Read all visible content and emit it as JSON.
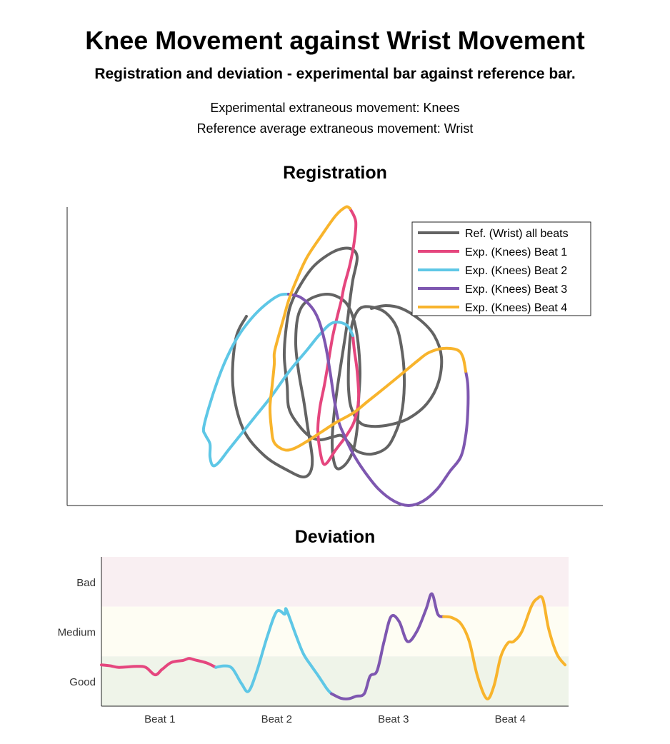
{
  "page": {
    "title": "Knee Movement against Wrist Movement",
    "subtitle": "Registration and deviation - experimental bar against reference bar.",
    "info_lines": [
      "Experimental extraneous movement: Knees",
      "Reference average extraneous movement: Wrist"
    ]
  },
  "chart_data": [
    {
      "type": "line",
      "title": "Registration",
      "xlabel": "",
      "ylabel": "",
      "axes_ticks": "none",
      "legend_position": "top-right",
      "colors": {
        "reference": "#636363",
        "beat1": "#e5467e",
        "beat2": "#5ec7e6",
        "beat3": "#7e57b0",
        "beat4": "#f8b42c"
      },
      "series": [
        {
          "name": "Ref. (Wrist) all beats",
          "color": "#636363",
          "segments": [
            [
              [
                345,
                443
              ],
              [
                330,
                475
              ],
              [
                326,
                540
              ],
              [
                340,
                600
              ],
              [
                370,
                638
              ],
              [
                405,
                660
              ],
              [
                425,
                668
              ],
              [
                435,
                660
              ],
              [
                437,
                640
              ],
              [
                431,
                600
              ],
              [
                425,
                560
              ],
              [
                418,
                520
              ],
              [
                414,
                480
              ],
              [
                418,
                440
              ],
              [
                432,
                420
              ],
              [
                458,
                412
              ],
              [
                480,
                420
              ],
              [
                492,
                438
              ],
              [
                500,
                470
              ],
              [
                504,
                520
              ],
              [
                502,
                560
              ],
              [
                500,
                600
              ],
              [
                494,
                632
              ],
              [
                482,
                652
              ],
              [
                470,
                654
              ],
              [
                465,
                620
              ],
              [
                470,
                560
              ],
              [
                485,
                460
              ],
              [
                490,
                420
              ],
              [
                494,
                392
              ],
              [
                500,
                360
              ],
              [
                490,
                348
              ],
              [
                468,
                352
              ],
              [
                440,
                372
              ],
              [
                420,
                400
              ],
              [
                406,
                430
              ],
              [
                400,
                465
              ],
              [
                398,
                500
              ],
              [
                402,
                540
              ],
              [
                404,
                570
              ],
              [
                414,
                590
              ],
              [
                432,
                610
              ],
              [
                448,
                616
              ],
              [
                466,
                612
              ],
              [
                478,
                610
              ],
              [
                488,
                620
              ],
              [
                500,
                632
              ],
              [
                520,
                636
              ],
              [
                540,
                628
              ],
              [
                552,
                610
              ],
              [
                562,
                580
              ],
              [
                566,
                540
              ],
              [
                564,
                500
              ],
              [
                556,
                460
              ],
              [
                540,
                438
              ],
              [
                520,
                430
              ],
              [
                504,
                432
              ],
              [
                494,
                450
              ],
              [
                490,
                475
              ],
              [
                488,
                510
              ],
              [
                488,
                545
              ],
              [
                492,
                572
              ],
              [
                504,
                592
              ],
              [
                520,
                597
              ],
              [
                545,
                595
              ],
              [
                572,
                586
              ],
              [
                598,
                565
              ],
              [
                614,
                535
              ],
              [
                618,
                500
              ],
              [
                608,
                470
              ],
              [
                588,
                448
              ],
              [
                562,
                432
              ],
              [
                540,
                428
              ],
              [
                520,
                432
              ]
            ]
          ]
        },
        {
          "name": "Exp. (Knees) Beat 1",
          "color": "#e5467e",
          "segments": [
            [
              [
                490,
                292
              ],
              [
                498,
                310
              ],
              [
                496,
                338
              ],
              [
                490,
                370
              ],
              [
                482,
                400
              ],
              [
                478,
                420
              ],
              [
                473,
                440
              ],
              [
                466,
                470
              ],
              [
                460,
                505
              ],
              [
                454,
                540
              ],
              [
                448,
                570
              ],
              [
                445,
                600
              ],
              [
                447,
                625
              ],
              [
                452,
                648
              ],
              [
                458,
                648
              ],
              [
                470,
                630
              ],
              [
                485,
                610
              ],
              [
                496,
                590
              ],
              [
                502,
                560
              ],
              [
                500,
                520
              ],
              [
                496,
                490
              ],
              [
                494,
                470
              ]
            ]
          ]
        },
        {
          "name": "Exp. (Knees) Beat 2",
          "color": "#5ec7e6",
          "segments": [
            [
              [
                494,
                470
              ],
              [
                485,
                455
              ],
              [
                466,
                452
              ],
              [
                448,
                468
              ],
              [
                430,
                490
              ],
              [
                405,
                520
              ],
              [
                380,
                555
              ],
              [
                360,
                580
              ],
              [
                340,
                605
              ],
              [
                320,
                630
              ],
              [
                306,
                648
              ],
              [
                298,
                652
              ],
              [
                294,
                640
              ],
              [
                294,
                622
              ],
              [
                288,
                610
              ],
              [
                285,
                600
              ],
              [
                292,
                572
              ],
              [
                305,
                532
              ],
              [
                318,
                500
              ],
              [
                334,
                470
              ],
              [
                352,
                446
              ],
              [
                370,
                428
              ],
              [
                390,
                414
              ],
              [
                404,
                412
              ]
            ]
          ]
        },
        {
          "name": "Exp. (Knees) Beat 3",
          "color": "#7e57b0",
          "segments": [
            [
              [
                404,
                412
              ],
              [
                420,
                416
              ],
              [
                436,
                430
              ],
              [
                446,
                448
              ],
              [
                455,
                480
              ],
              [
                462,
                520
              ],
              [
                468,
                560
              ],
              [
                474,
                590
              ],
              [
                482,
                610
              ],
              [
                494,
                635
              ],
              [
                510,
                660
              ],
              [
                530,
                685
              ],
              [
                552,
                702
              ],
              [
                572,
                708
              ],
              [
                592,
                702
              ],
              [
                612,
                685
              ],
              [
                630,
                660
              ],
              [
                645,
                640
              ],
              [
                652,
                610
              ],
              [
                655,
                575
              ],
              [
                655,
                540
              ],
              [
                652,
                520
              ]
            ]
          ]
        },
        {
          "name": "Exp. (Knees) Beat 4",
          "color": "#f8b42c",
          "segments": [
            [
              [
                652,
                520
              ],
              [
                648,
                500
              ],
              [
                640,
                490
              ],
              [
                620,
                488
              ],
              [
                600,
                494
              ],
              [
                585,
                505
              ],
              [
                562,
                524
              ],
              [
                540,
                542
              ],
              [
                515,
                562
              ],
              [
                495,
                578
              ],
              [
                470,
                592
              ],
              [
                450,
                605
              ],
              [
                430,
                618
              ],
              [
                412,
                628
              ],
              [
                398,
                630
              ],
              [
                384,
                620
              ],
              [
                380,
                600
              ],
              [
                378,
                570
              ],
              [
                381,
                540
              ],
              [
                384,
                510
              ],
              [
                384,
                495
              ],
              [
                388,
                478
              ],
              [
                397,
                446
              ],
              [
                405,
                418
              ],
              [
                416,
                390
              ],
              [
                430,
                360
              ],
              [
                450,
                330
              ],
              [
                470,
                302
              ],
              [
                484,
                290
              ],
              [
                490,
                292
              ]
            ]
          ]
        }
      ]
    },
    {
      "type": "line",
      "title": "Deviation",
      "categories": [
        "Beat 1",
        "Beat 2",
        "Beat 3",
        "Beat 4"
      ],
      "bands": [
        {
          "label": "Bad",
          "from": 2,
          "to": 3,
          "color": "#f9eff2"
        },
        {
          "label": "Medium",
          "from": 1,
          "to": 2,
          "color": "#fefdf3"
        },
        {
          "label": "Good",
          "from": 0,
          "to": 1,
          "color": "#eff4e9"
        }
      ],
      "ylim": [
        0,
        3
      ],
      "xlim": [
        0,
        4
      ],
      "series": [
        {
          "name": "",
          "beat": 1,
          "color": "#e5467e",
          "points": [
            [
              0.0,
              0.83
            ],
            [
              0.08,
              0.81
            ],
            [
              0.15,
              0.78
            ],
            [
              0.3,
              0.8
            ],
            [
              0.38,
              0.78
            ],
            [
              0.46,
              0.63
            ],
            [
              0.52,
              0.74
            ],
            [
              0.6,
              0.88
            ],
            [
              0.7,
              0.92
            ],
            [
              0.75,
              0.96
            ],
            [
              0.8,
              0.93
            ],
            [
              0.9,
              0.87
            ],
            [
              0.98,
              0.78
            ]
          ]
        },
        {
          "name": "",
          "beat": 2,
          "color": "#5ec7e6",
          "points": [
            [
              0.98,
              0.78
            ],
            [
              1.05,
              0.81
            ],
            [
              1.12,
              0.76
            ],
            [
              1.2,
              0.45
            ],
            [
              1.26,
              0.3
            ],
            [
              1.33,
              0.7
            ],
            [
              1.42,
              1.4
            ],
            [
              1.5,
              1.9
            ],
            [
              1.57,
              1.85
            ],
            [
              1.58,
              1.96
            ],
            [
              1.62,
              1.72
            ],
            [
              1.67,
              1.4
            ],
            [
              1.73,
              1.05
            ],
            [
              1.8,
              0.8
            ],
            [
              1.86,
              0.6
            ],
            [
              1.93,
              0.35
            ],
            [
              1.97,
              0.25
            ]
          ]
        },
        {
          "name": "",
          "beat": 3,
          "color": "#7e57b0",
          "points": [
            [
              1.97,
              0.25
            ],
            [
              2.05,
              0.16
            ],
            [
              2.12,
              0.15
            ],
            [
              2.18,
              0.2
            ],
            [
              2.25,
              0.25
            ],
            [
              2.3,
              0.6
            ],
            [
              2.36,
              0.71
            ],
            [
              2.42,
              1.3
            ],
            [
              2.48,
              1.8
            ],
            [
              2.55,
              1.7
            ],
            [
              2.62,
              1.3
            ],
            [
              2.7,
              1.5
            ],
            [
              2.78,
              1.95
            ],
            [
              2.83,
              2.26
            ],
            [
              2.88,
              1.85
            ],
            [
              2.93,
              1.8
            ]
          ]
        },
        {
          "name": "",
          "beat": 4,
          "color": "#f8b42c",
          "points": [
            [
              2.93,
              1.8
            ],
            [
              3.0,
              1.78
            ],
            [
              3.08,
              1.65
            ],
            [
              3.15,
              1.3
            ],
            [
              3.22,
              0.6
            ],
            [
              3.3,
              0.15
            ],
            [
              3.36,
              0.4
            ],
            [
              3.42,
              1.0
            ],
            [
              3.48,
              1.27
            ],
            [
              3.53,
              1.3
            ],
            [
              3.6,
              1.5
            ],
            [
              3.68,
              2.0
            ],
            [
              3.73,
              2.16
            ],
            [
              3.78,
              2.15
            ],
            [
              3.83,
              1.55
            ],
            [
              3.9,
              1.05
            ],
            [
              3.97,
              0.83
            ]
          ]
        }
      ]
    }
  ]
}
